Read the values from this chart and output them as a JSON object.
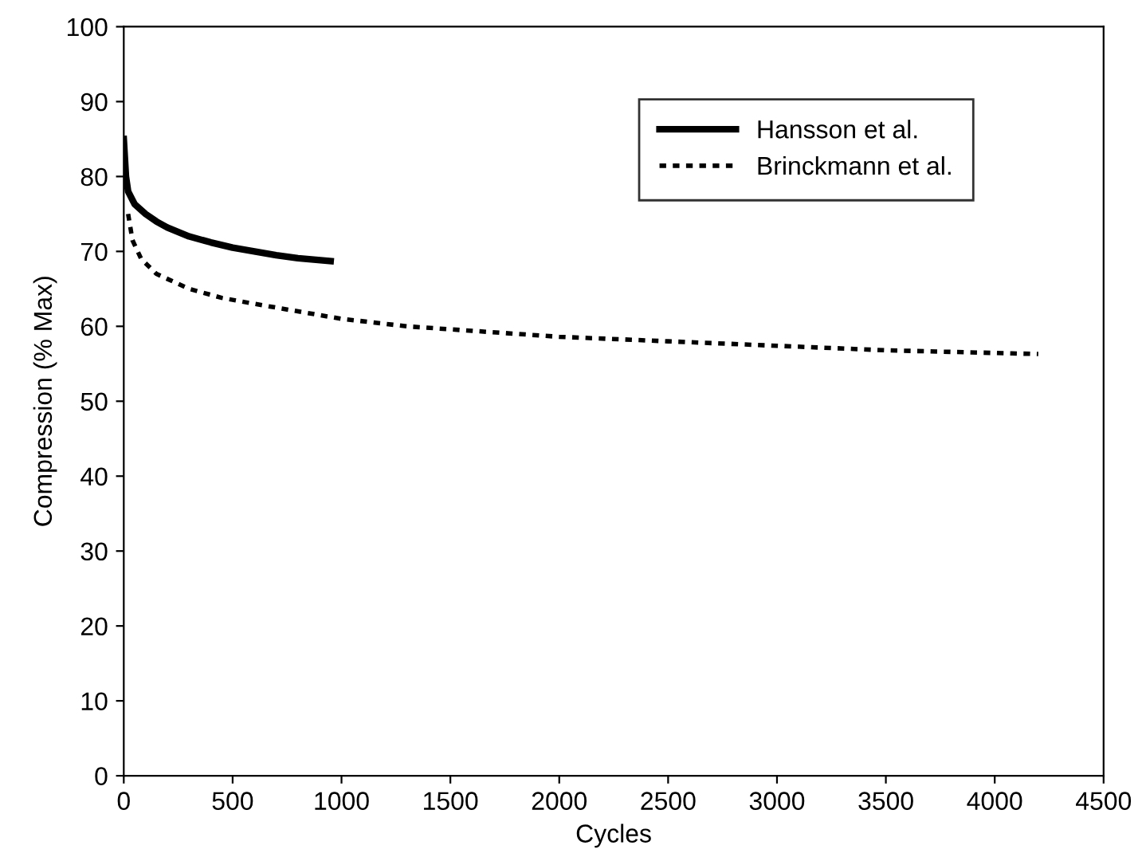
{
  "chart_data": {
    "type": "line",
    "xlabel": "Cycles",
    "ylabel": "Compression (% Max)",
    "xlim": [
      0,
      4500
    ],
    "ylim": [
      0,
      100
    ],
    "xticks": [
      0,
      500,
      1000,
      1500,
      2000,
      2500,
      3000,
      3500,
      4000,
      4500
    ],
    "yticks": [
      0,
      10,
      20,
      30,
      40,
      50,
      60,
      70,
      80,
      90,
      100
    ],
    "grid": false,
    "legend": "top right",
    "marker": "none",
    "series": [
      {
        "name": "Hansson et al.",
        "color": "#000000",
        "line_style": "solid",
        "x": [
          0,
          10,
          20,
          50,
          100,
          150,
          200,
          300,
          400,
          500,
          600,
          700,
          800,
          950
        ],
        "values": [
          85,
          80,
          78,
          76.3,
          75,
          74,
          73.2,
          72,
          71.2,
          70.5,
          70,
          69.5,
          69.1,
          68.7
        ]
      },
      {
        "name": "Brinckmann et al.",
        "color": "#000000",
        "line_style": "dashed",
        "x": [
          20,
          40,
          80,
          150,
          300,
          450,
          600,
          800,
          1000,
          1300,
          1600,
          2000,
          2500,
          3000,
          3500,
          4200
        ],
        "values": [
          75,
          71.5,
          69,
          67,
          65,
          63.8,
          63,
          62,
          61,
          60,
          59.4,
          58.6,
          58,
          57.4,
          56.8,
          56.3
        ]
      }
    ]
  }
}
